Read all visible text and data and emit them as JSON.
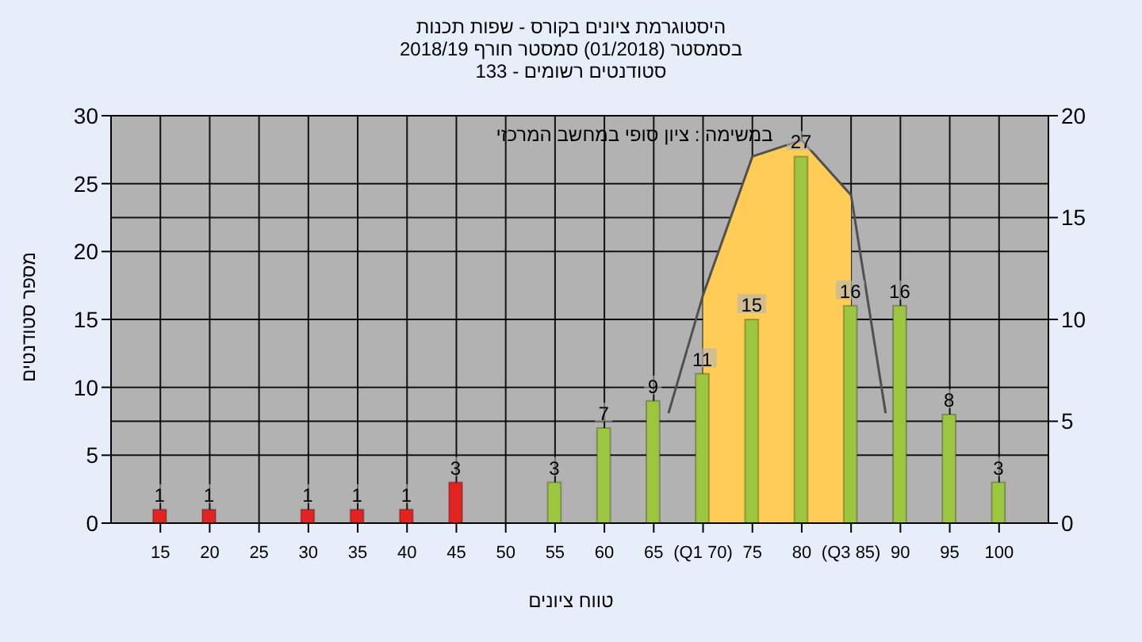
{
  "chart_data": {
    "type": "bar",
    "title": "היסטוגרמת ציונים בקורס - שפות תכנות",
    "subtitle": "בסמסטר (01/2018) סמסטר חורף 2018/19\nסטודנטים רשומים - 133",
    "xlabel": "טווח ציונים",
    "ylabel": "מספר סטודנטים",
    "annotations": [
      "במשימה : ציון סופי במחשב המרכזי"
    ],
    "xlim": [
      10,
      105
    ],
    "xticks": [
      15,
      20,
      25,
      30,
      35,
      40,
      45,
      50,
      55,
      60,
      65,
      {
        "value": 70,
        "label": "(Q1 70)"
      },
      75,
      80,
      {
        "value": 85,
        "label": "(Q3 85)"
      },
      90,
      95,
      100
    ],
    "ylim": [
      0,
      30
    ],
    "yticks": [
      0,
      5,
      10,
      15,
      20,
      25,
      30
    ],
    "y2lim": [
      0,
      20
    ],
    "y2ticks": [
      0,
      5,
      10,
      15,
      20
    ],
    "grid": true,
    "legend": false,
    "series": [
      {
        "type": "area",
        "axis": "y2",
        "color": "#ffcc55",
        "x": [
          70,
          75,
          80,
          85
        ],
        "values": [
          11.2,
          18,
          18.8,
          16.1
        ]
      },
      {
        "type": "line",
        "axis": "y2",
        "color": "#505050",
        "x": [
          66.5,
          70,
          75,
          80,
          85,
          88.5
        ],
        "values": [
          5.4,
          11.2,
          18,
          18.8,
          16.1,
          5.4
        ]
      },
      {
        "x": [
          15,
          20,
          30,
          35,
          40,
          45,
          55,
          60,
          65,
          70,
          75,
          80,
          85,
          90,
          95,
          100
        ],
        "values": [
          1,
          1,
          1,
          1,
          1,
          3,
          3,
          7,
          9,
          11,
          15,
          27,
          16,
          16,
          8,
          3
        ],
        "value_labels": [
          "1",
          "1",
          "1",
          "1",
          "1",
          "3",
          "3",
          "7",
          "9",
          "11",
          "15",
          "27",
          "16",
          "16",
          "8",
          "3"
        ],
        "colors": [
          "#e32222",
          "#e32222",
          "#e32222",
          "#e32222",
          "#e32222",
          "#e32222",
          "#9cc640",
          "#9cc640",
          "#9cc640",
          "#9cc640",
          "#9cc640",
          "#9cc640",
          "#9cc640",
          "#9cc640",
          "#9cc640",
          "#9cc640"
        ]
      }
    ]
  }
}
